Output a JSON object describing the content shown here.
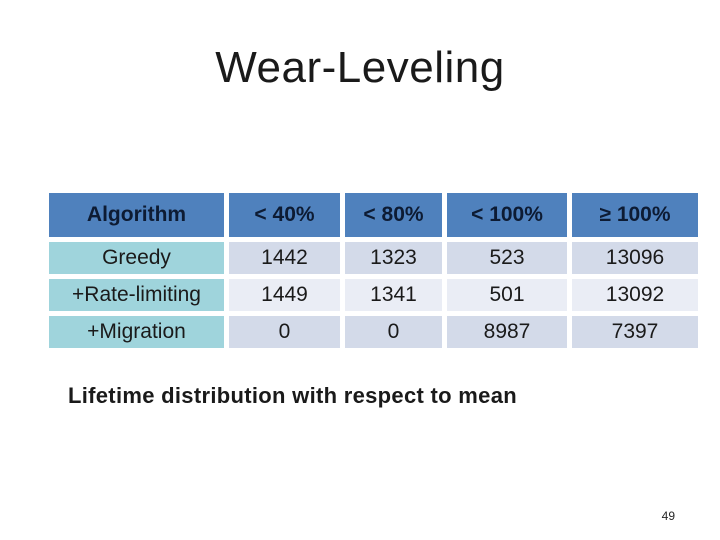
{
  "slide": {
    "title": "Wear-Leveling",
    "caption": "Lifetime distribution with respect to mean",
    "page_number": "49"
  },
  "table": {
    "columns": [
      "Algorithm",
      "< 40%",
      "< 80%",
      "< 100%",
      "≥ 100%"
    ],
    "rows": [
      {
        "label": "Greedy",
        "values": [
          "1442",
          "1323",
          "523",
          "13096"
        ]
      },
      {
        "label": "+Rate-limiting",
        "values": [
          "1449",
          "1341",
          "501",
          "13092"
        ]
      },
      {
        "label": "+Migration",
        "values": [
          "0",
          "0",
          "8987",
          "7397"
        ]
      }
    ]
  },
  "colors": {
    "header_bg": "#4f81bd",
    "header_text": "#0d1b33",
    "label_col_bg": "#9fd4dc",
    "row_dark_bg": "#d3dae9",
    "row_light_bg": "#eaedf5",
    "body_text": "#1a1a1a"
  }
}
